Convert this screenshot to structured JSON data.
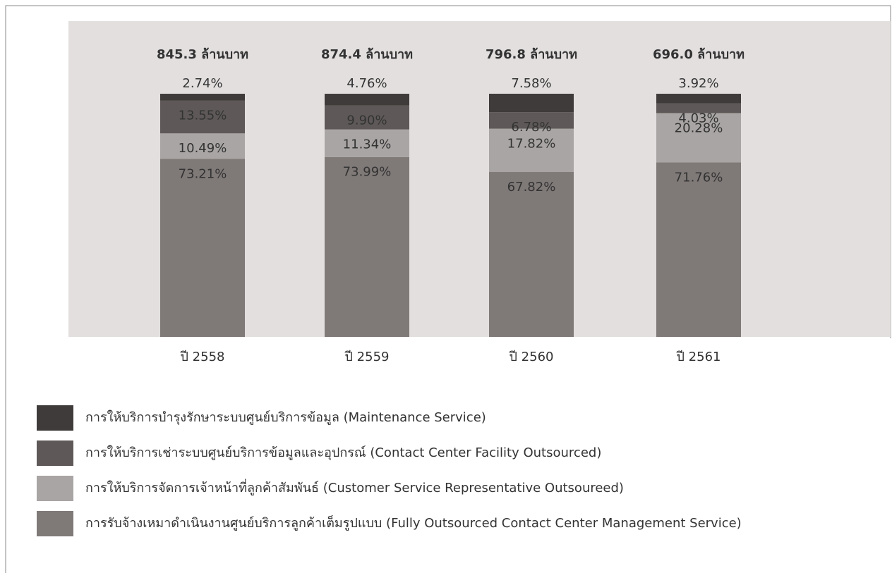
{
  "chart_data": {
    "type": "stacked-bar",
    "categories": [
      "ปี 2558",
      "ปี 2559",
      "ปี 2560",
      "ปี 2561"
    ],
    "totals": [
      "845.3 ล้านบาท",
      "874.4 ล้านบาท",
      "796.8 ล้านบาท",
      "696.0 ล้านบาท"
    ],
    "ylim": [
      0,
      100
    ],
    "series": [
      {
        "name": "การให้บริการบำรุงรักษาระบบศูนย์บริการข้อมูล (Maintenance Service)",
        "color": "#3f3b3a",
        "values": [
          2.74,
          4.76,
          7.58,
          3.92
        ],
        "value_labels": [
          "2.74%",
          "4.76%",
          "7.58%",
          "3.92%"
        ]
      },
      {
        "name": "การให้บริการเช่าระบบศูนย์บริการข้อมูลและอุปกรณ์ (Contact Center Facility Outsourced)",
        "color": "#5e5958",
        "values": [
          13.55,
          9.9,
          6.78,
          4.03
        ],
        "value_labels": [
          "13.55%",
          "9.90%",
          "6.78%",
          "4.03%"
        ]
      },
      {
        "name": "การให้บริการจัดการเจ้าหน้าที่ลูกค้าสัมพันธ์ (Customer Service Representative Outsoureed)",
        "color": "#a9a5a4",
        "values": [
          10.49,
          11.34,
          17.82,
          20.28
        ],
        "value_labels": [
          "10.49%",
          "11.34%",
          "17.82%",
          "20.28%"
        ]
      },
      {
        "name": "การรับจ้างเหมาดำเนินงานศูนย์บริการลูกค้าเต็มรูปแบบ (Fully Outsourced Contact Center Management Service)",
        "color": "#7f7978",
        "values": [
          73.21,
          73.99,
          67.82,
          71.76
        ],
        "value_labels": [
          "73.21%",
          "73.99%",
          "67.82%",
          "71.76%"
        ]
      }
    ]
  }
}
